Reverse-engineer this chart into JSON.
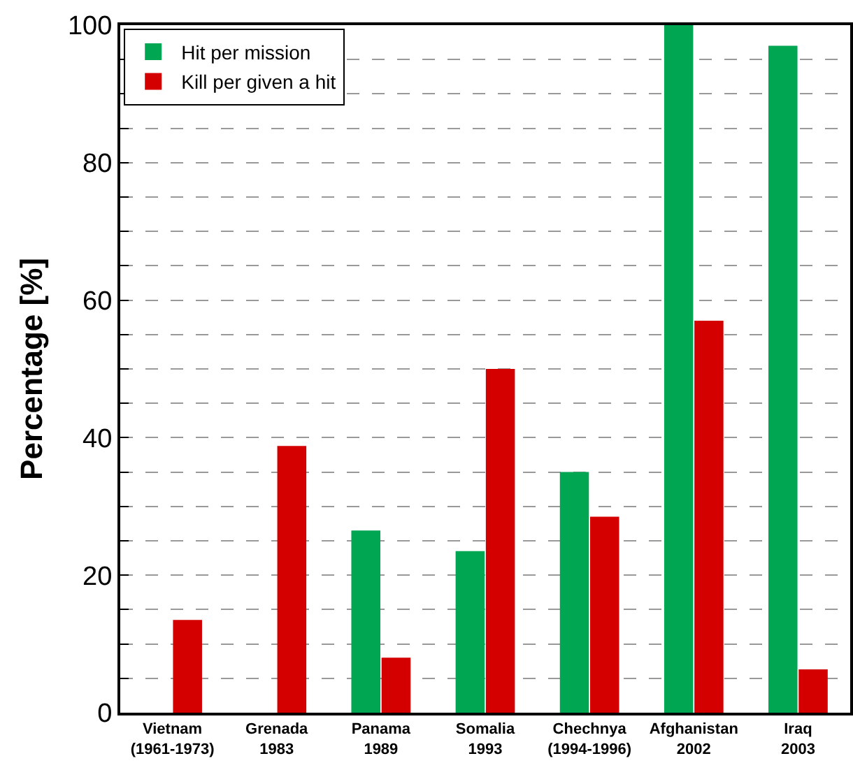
{
  "chart_data": {
    "type": "bar",
    "ylabel": "Percentage [%]",
    "categories": [
      "Vietnam\n(1961-1973)",
      "Grenada\n1983",
      "Panama\n1989",
      "Somalia\n1993",
      "Chechnya\n(1994-1996)",
      "Afghanistan\n2002",
      "Iraq\n2003"
    ],
    "series": [
      {
        "name": "Hit per mission",
        "color": "#00a651",
        "values": [
          null,
          null,
          26.5,
          23.5,
          35,
          100,
          97
        ]
      },
      {
        "name": "Kill per given a hit",
        "color": "#d40000",
        "values": [
          13.5,
          38.8,
          8,
          50,
          28.5,
          57,
          6.3
        ]
      }
    ],
    "ylim": [
      0,
      100
    ],
    "yticks": [
      0,
      {
        "value": 5,
        "label": null
      },
      {
        "value": 10,
        "label": null
      },
      {
        "value": 15,
        "label": null
      },
      20,
      {
        "value": 25,
        "label": null
      },
      {
        "value": 30,
        "label": null
      },
      {
        "value": 35,
        "label": null
      },
      40,
      {
        "value": 45,
        "label": null
      },
      {
        "value": 50,
        "label": null
      },
      {
        "value": 55,
        "label": null
      },
      60,
      {
        "value": 65,
        "label": null
      },
      {
        "value": 70,
        "label": null
      },
      {
        "value": 75,
        "label": null
      },
      80,
      {
        "value": 85,
        "label": null
      },
      {
        "value": 90,
        "label": null
      },
      {
        "value": 95,
        "label": null
      },
      100
    ],
    "grid": true,
    "legend": "top left"
  }
}
